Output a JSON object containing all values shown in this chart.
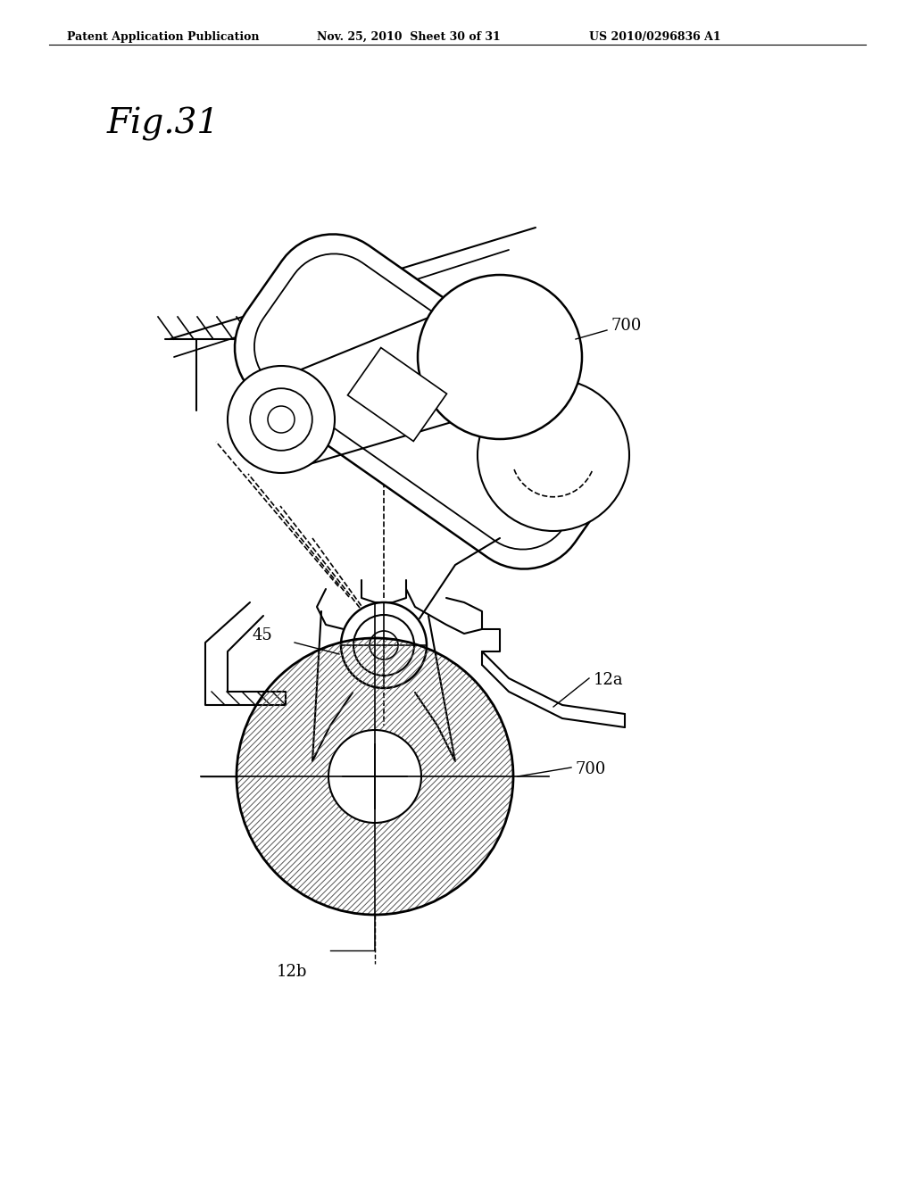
{
  "title": "Fig.31",
  "header_left": "Patent Application Publication",
  "header_mid": "Nov. 25, 2010  Sheet 30 of 31",
  "header_right": "US 2010/0296836 A1",
  "labels": {
    "700_top": "700",
    "45": "45",
    "12a": "12a",
    "700_bottom": "700",
    "12b": "12b"
  },
  "bg_color": "#ffffff",
  "line_color": "#000000"
}
